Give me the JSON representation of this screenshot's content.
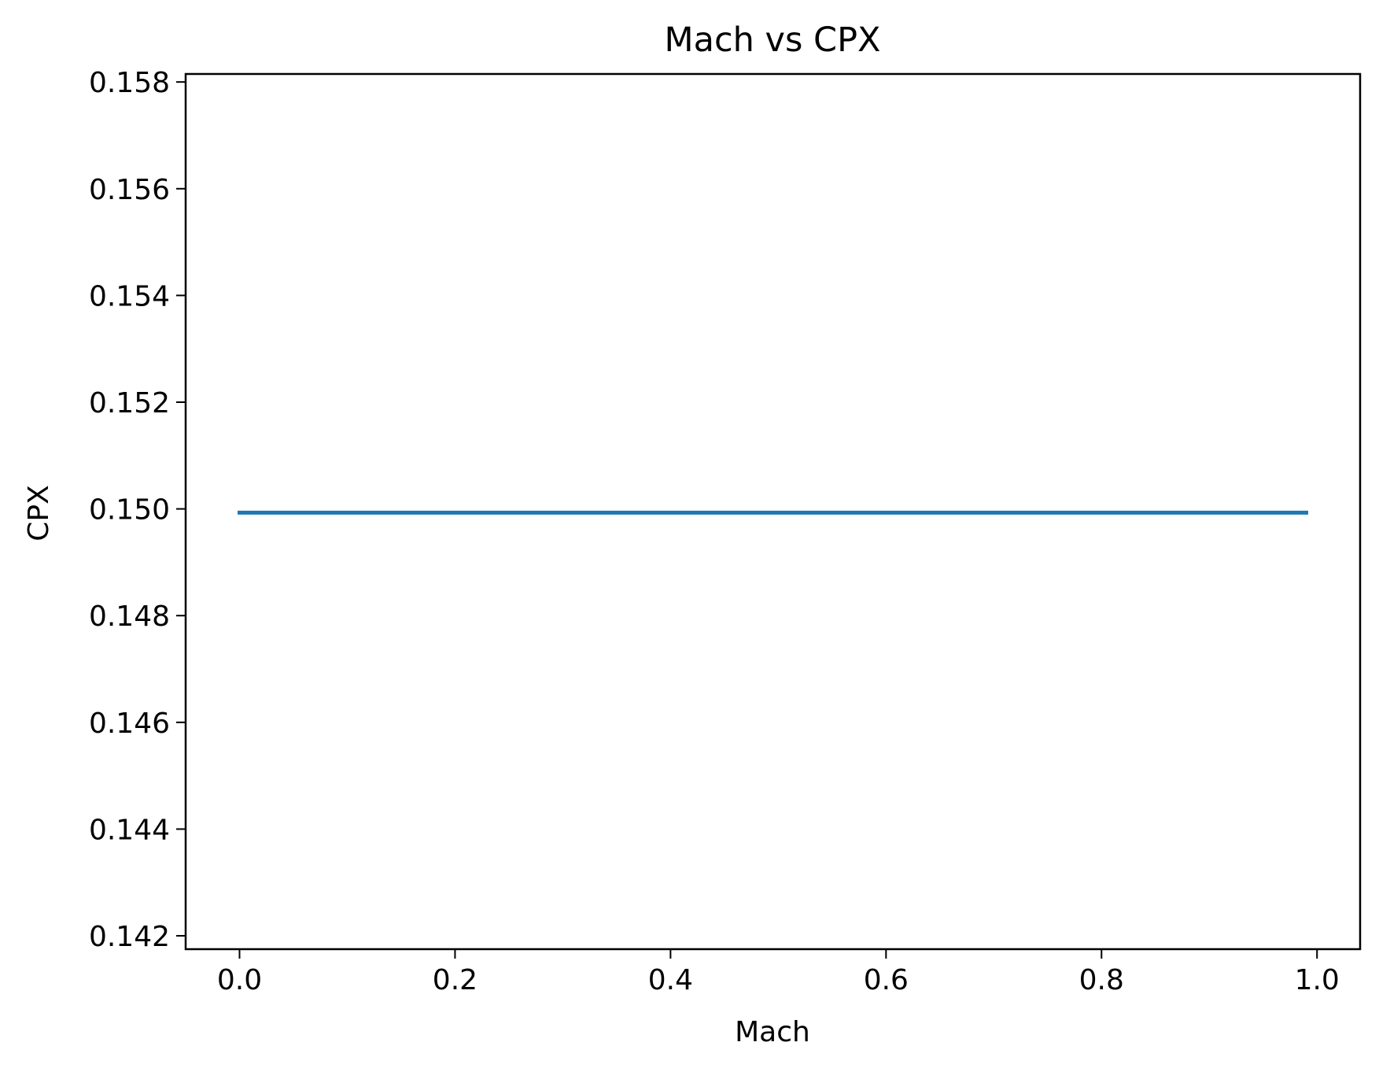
{
  "chart_data": {
    "type": "line",
    "title": "Mach vs CPX",
    "xlabel": "Mach",
    "ylabel": "CPX",
    "xlim": [
      -0.05,
      1.04
    ],
    "ylim": [
      0.14175,
      0.15815
    ],
    "x_ticks": [
      0.0,
      0.2,
      0.4,
      0.6,
      0.8,
      1.0
    ],
    "x_tick_labels": [
      "0.0",
      "0.2",
      "0.4",
      "0.6",
      "0.8",
      "1.0"
    ],
    "y_ticks": [
      0.142,
      0.144,
      0.146,
      0.148,
      0.15,
      0.152,
      0.154,
      0.156,
      0.158
    ],
    "y_tick_labels": [
      "0.142",
      "0.144",
      "0.146",
      "0.148",
      "0.150",
      "0.152",
      "0.154",
      "0.156",
      "0.158"
    ],
    "grid": false,
    "series": [
      {
        "x": [
          0.0,
          0.99
        ],
        "y": [
          0.14993,
          0.14993
        ],
        "color": "#1f77b4"
      }
    ]
  }
}
